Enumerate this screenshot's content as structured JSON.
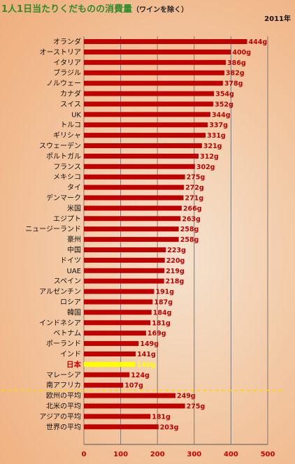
{
  "title": "1人1日当たりくだものの消費量",
  "subtitle": "（ワインを除く）",
  "year": "2011年",
  "chart_data": {
    "type": "bar",
    "orientation": "horizontal",
    "unit": "g",
    "categories": [
      "オランダ",
      "オーストリア",
      "イタリア",
      "ブラジル",
      "ノルウェー",
      "カナダ",
      "スイス",
      "UK",
      "トルコ",
      "ギリシャ",
      "スウェーデン",
      "ポルトガル",
      "フランス",
      "メキシコ",
      "タイ",
      "デンマーク",
      "米国",
      "エジプト",
      "ニュージーランド",
      "豪州",
      "中国",
      "ドイツ",
      "UAE",
      "スペイン",
      "アルゼンチン",
      "ロシア",
      "韓国",
      "インドネシア",
      "ベトナム",
      "ポーランド",
      "インド",
      "日本",
      "マレーシア",
      "南アフリカ",
      "欧州の平均",
      "北米の平均",
      "アジアの平均",
      "世界の平均"
    ],
    "values": [
      444,
      400,
      386,
      382,
      378,
      354,
      352,
      344,
      337,
      331,
      321,
      312,
      302,
      275,
      272,
      271,
      266,
      263,
      258,
      258,
      223,
      220,
      219,
      218,
      191,
      187,
      184,
      181,
      169,
      149,
      141,
      140,
      124,
      107,
      249,
      275,
      181,
      203
    ],
    "value_labels": [
      "444g",
      "400g",
      "386g",
      "382g",
      "378g",
      "354g",
      "352g",
      "344g",
      "337g",
      "331g",
      "321g",
      "312g",
      "302g",
      "275g",
      "272g",
      "271g",
      "266g",
      "263g",
      "258g",
      "258g",
      "223g",
      "220g",
      "219g",
      "218g",
      "191g",
      "187g",
      "184g",
      "181g",
      "169g",
      "149g",
      "141g",
      "140g",
      "124g",
      "107g",
      "249g",
      "275g",
      "181g",
      "203g"
    ],
    "highlight": "日本",
    "bar_color": "#c00000",
    "highlight_color": "#ffff00",
    "separator_color": "#ffd700",
    "xlim": [
      0,
      500
    ],
    "xticks": [
      "0",
      "100",
      "200",
      "300",
      "400",
      "500"
    ],
    "grid": true
  }
}
